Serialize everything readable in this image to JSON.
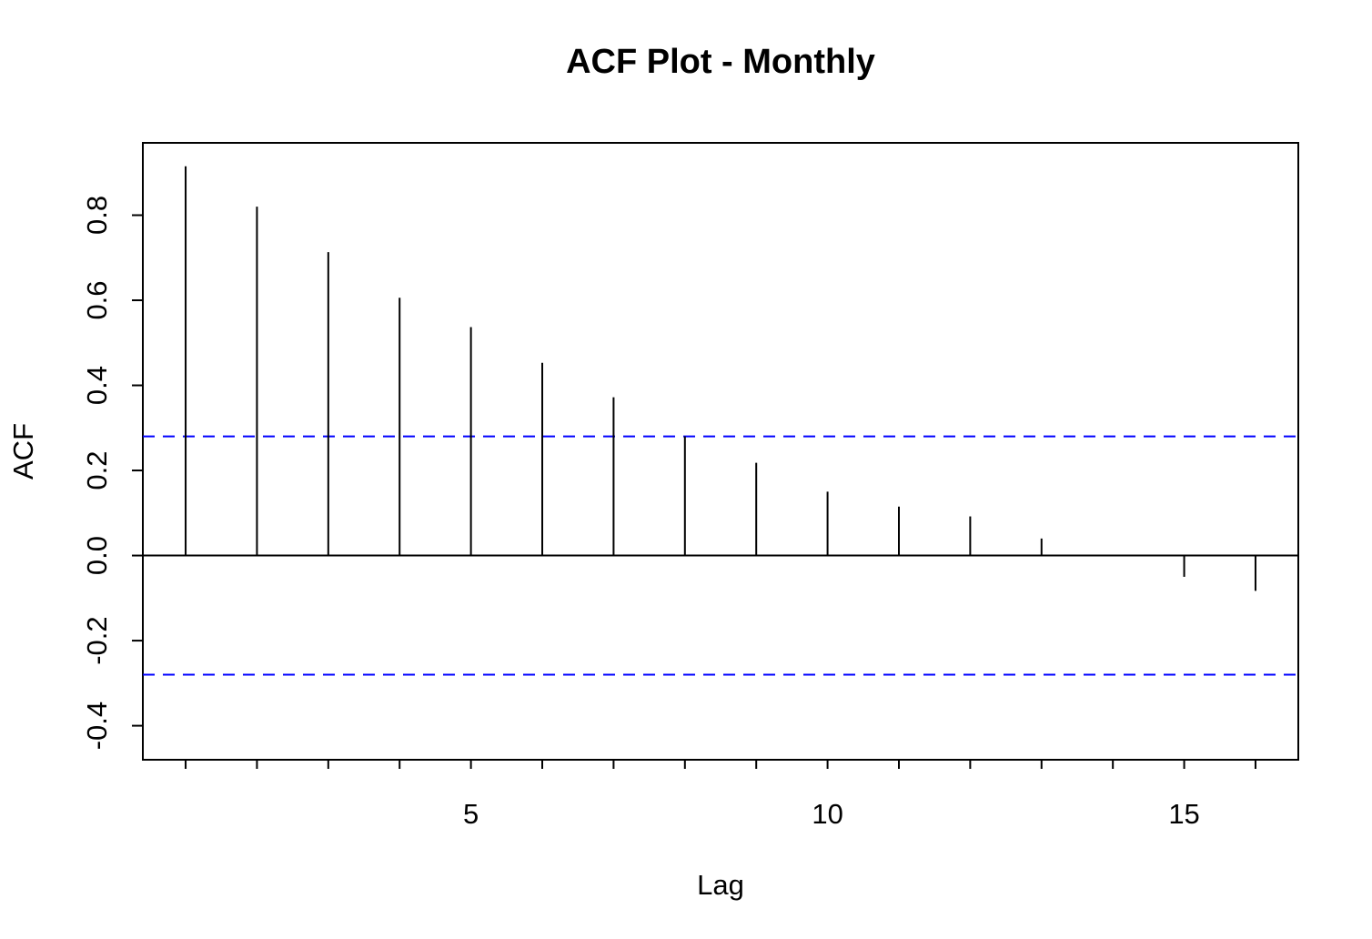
{
  "chart_data": {
    "type": "bar",
    "title": "ACF Plot - Monthly",
    "xlabel": "Lag",
    "ylabel": "ACF",
    "xlim": [
      0.4,
      16.6
    ],
    "ylim": [
      -0.48,
      0.97
    ],
    "x_ticks": [
      5,
      10,
      15
    ],
    "y_ticks": [
      -0.4,
      -0.2,
      0.0,
      0.2,
      0.4,
      0.6,
      0.8
    ],
    "y_tick_labels": [
      "-0.4",
      "-0.2",
      "0.0",
      "0.2",
      "0.4",
      "0.6",
      "0.8"
    ],
    "x_tick_labels": [
      "5",
      "10",
      "15"
    ],
    "lags": [
      1,
      2,
      3,
      4,
      5,
      6,
      7,
      8,
      9,
      10,
      11,
      12,
      13,
      14,
      15,
      16
    ],
    "values": [
      0.915,
      0.82,
      0.713,
      0.606,
      0.537,
      0.453,
      0.372,
      0.28,
      0.218,
      0.15,
      0.115,
      0.092,
      0.04,
      0.002,
      -0.05,
      -0.083
    ],
    "confidence_bound": 0.28,
    "zero_line": 0,
    "grid": false,
    "colors": {
      "spikes": "#000000",
      "confidence": "#0000ff",
      "axes": "#000000"
    }
  }
}
